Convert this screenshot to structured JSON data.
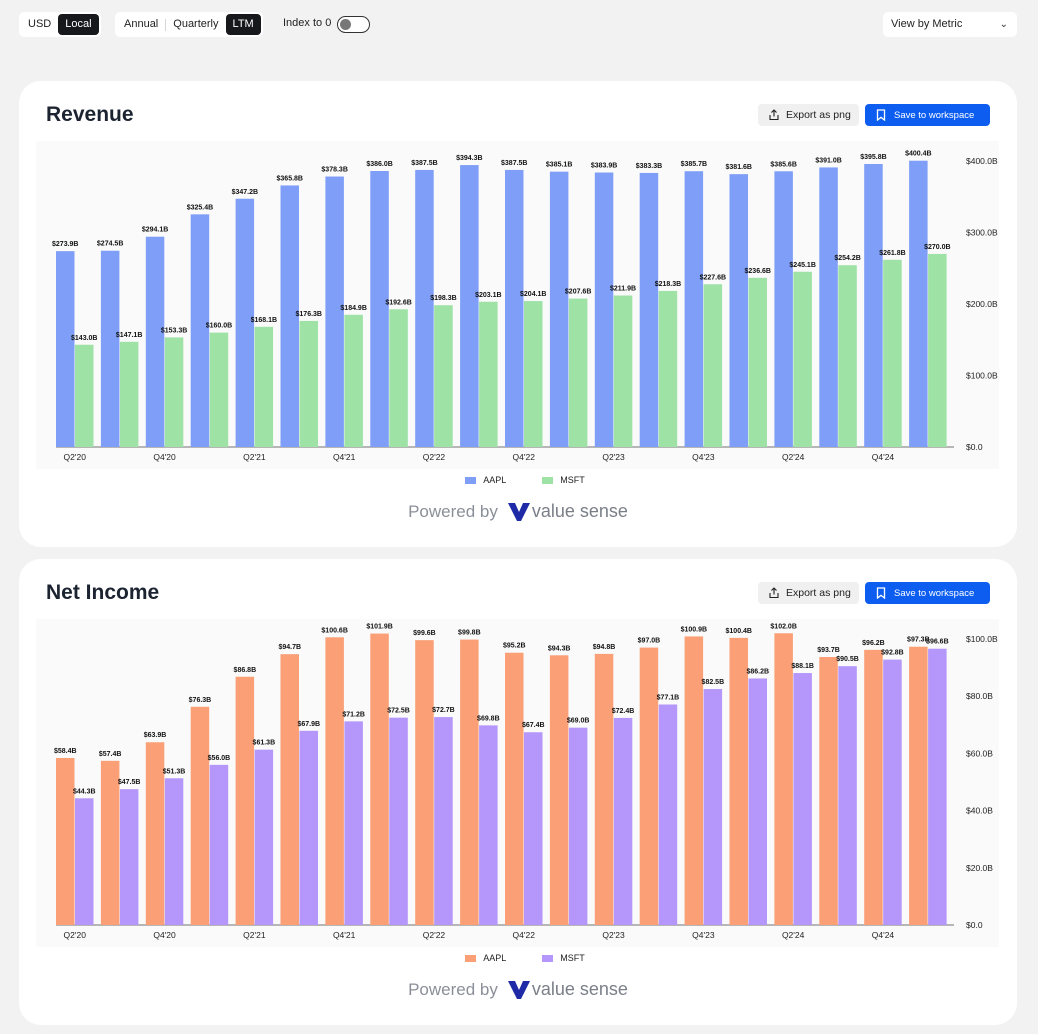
{
  "controls": {
    "currency": [
      {
        "label": "USD",
        "active": false
      },
      {
        "label": "Local",
        "active": true
      }
    ],
    "period": [
      {
        "label": "Annual",
        "active": false
      },
      {
        "label": "Quarterly",
        "active": false
      },
      {
        "label": "LTM",
        "active": true
      }
    ],
    "index_label": "Index to 0",
    "index_on": false,
    "view_select": "View by Metric"
  },
  "buttons": {
    "export": "Export as png",
    "save": "Save to workspace"
  },
  "powered_by": {
    "text": "Powered by",
    "brand": "value sense"
  },
  "colors": {
    "aapl_revenue": "#7e9ef8",
    "msft_revenue": "#9ee2a6",
    "aapl_income": "#fb9f76",
    "msft_income": "#b597fb"
  },
  "charts": [
    {
      "title": "Revenue",
      "chart_data": {
        "type": "bar",
        "categories": [
          "Q2'20",
          "Q3'20",
          "Q4'20",
          "Q1'21",
          "Q2'21",
          "Q3'21",
          "Q4'21",
          "Q1'22",
          "Q2'22",
          "Q3'22",
          "Q4'22",
          "Q1'23",
          "Q2'23",
          "Q3'23",
          "Q4'23",
          "Q1'24",
          "Q2'24",
          "Q3'24",
          "Q4'24",
          "Q1'25"
        ],
        "tick_labels": [
          "Q2'20",
          "",
          "Q4'20",
          "",
          "Q2'21",
          "",
          "Q4'21",
          "",
          "Q2'22",
          "",
          "Q4'22",
          "",
          "Q2'23",
          "",
          "Q4'23",
          "",
          "Q2'24",
          "",
          "Q4'24",
          ""
        ],
        "series": [
          {
            "name": "AAPL",
            "color": "#7e9ef8",
            "values": [
              273.9,
              274.5,
              294.1,
              325.4,
              347.2,
              365.8,
              378.3,
              386.0,
              387.5,
              394.3,
              387.5,
              385.1,
              383.9,
              383.3,
              385.7,
              381.6,
              385.6,
              391.0,
              395.8,
              400.4
            ],
            "labels": [
              "$273.9B",
              "$274.5B",
              "$294.1B",
              "$325.4B",
              "$347.2B",
              "$365.8B",
              "$378.3B",
              "$386.0B",
              "$387.5B",
              "$394.3B",
              "$387.5B",
              "$385.1B",
              "$383.9B",
              "$383.3B",
              "$385.7B",
              "$381.6B",
              "$385.6B",
              "$391.0B",
              "$395.8B",
              "$400.4B"
            ]
          },
          {
            "name": "MSFT",
            "color": "#9ee2a6",
            "values": [
              143.0,
              147.1,
              153.3,
              160.0,
              168.1,
              176.3,
              184.9,
              192.6,
              198.3,
              203.1,
              204.1,
              207.6,
              211.9,
              218.3,
              227.6,
              236.6,
              245.1,
              254.2,
              261.8,
              270.0
            ],
            "labels": [
              "$143.0B",
              "$147.1B",
              "$153.3B",
              "$160.0B",
              "$168.1B",
              "$176.3B",
              "$184.9B",
              "$192.6B",
              "$198.3B",
              "$203.1B",
              "$204.1B",
              "$207.6B",
              "$211.9B",
              "$218.3B",
              "$227.6B",
              "$236.6B",
              "$245.1B",
              "$254.2B",
              "$261.8B",
              "$270.0B"
            ]
          }
        ],
        "yticks": [
          0,
          100,
          200,
          300,
          400
        ],
        "ytick_labels": [
          "$0.0",
          "$100.0B",
          "$200.0B",
          "$300.0B",
          "$400.0B"
        ],
        "ylim": [
          0,
          400
        ],
        "y_axis_side": "right",
        "legend_position": "bottom-center"
      }
    },
    {
      "title": "Net Income",
      "chart_data": {
        "type": "bar",
        "categories": [
          "Q2'20",
          "Q3'20",
          "Q4'20",
          "Q1'21",
          "Q2'21",
          "Q3'21",
          "Q4'21",
          "Q1'22",
          "Q2'22",
          "Q3'22",
          "Q4'22",
          "Q1'23",
          "Q2'23",
          "Q3'23",
          "Q4'23",
          "Q1'24",
          "Q2'24",
          "Q3'24",
          "Q4'24",
          "Q1'25"
        ],
        "tick_labels": [
          "Q2'20",
          "",
          "Q4'20",
          "",
          "Q2'21",
          "",
          "Q4'21",
          "",
          "Q2'22",
          "",
          "Q4'22",
          "",
          "Q2'23",
          "",
          "Q4'23",
          "",
          "Q2'24",
          "",
          "Q4'24",
          ""
        ],
        "series": [
          {
            "name": "AAPL",
            "color": "#fb9f76",
            "values": [
              58.4,
              57.4,
              63.9,
              76.3,
              86.8,
              94.7,
              100.6,
              101.9,
              99.6,
              99.8,
              95.2,
              94.3,
              94.8,
              97.0,
              100.9,
              100.4,
              102.0,
              93.7,
              96.2,
              97.3
            ],
            "labels": [
              "$58.4B",
              "$57.4B",
              "$63.9B",
              "$76.3B",
              "$86.8B",
              "$94.7B",
              "$100.6B",
              "$101.9B",
              "$99.6B",
              "$99.8B",
              "$95.2B",
              "$94.3B",
              "$94.8B",
              "$97.0B",
              "$100.9B",
              "$100.4B",
              "$102.0B",
              "$93.7B",
              "$96.2B",
              "$97.3B"
            ]
          },
          {
            "name": "MSFT",
            "color": "#b597fb",
            "values": [
              44.3,
              47.5,
              51.3,
              56.0,
              61.3,
              67.9,
              71.2,
              72.5,
              72.7,
              69.8,
              67.4,
              69.0,
              72.4,
              77.1,
              82.5,
              86.2,
              88.1,
              90.5,
              92.8,
              96.6
            ],
            "labels": [
              "$44.3B",
              "$47.5B",
              "$51.3B",
              "$56.0B",
              "$61.3B",
              "$67.9B",
              "$71.2B",
              "$72.5B",
              "$72.7B",
              "$69.8B",
              "$67.4B",
              "$69.0B",
              "$72.4B",
              "$77.1B",
              "$82.5B",
              "$86.2B",
              "$88.1B",
              "$90.5B",
              "$92.8B",
              "$96.6B"
            ]
          }
        ],
        "yticks": [
          0,
          20,
          40,
          60,
          80,
          100
        ],
        "ytick_labels": [
          "$0.0",
          "$20.0B",
          "$40.0B",
          "$60.0B",
          "$80.0B",
          "$100.0B"
        ],
        "ylim": [
          0,
          100
        ],
        "y_axis_side": "right",
        "legend_position": "bottom-center"
      }
    }
  ]
}
